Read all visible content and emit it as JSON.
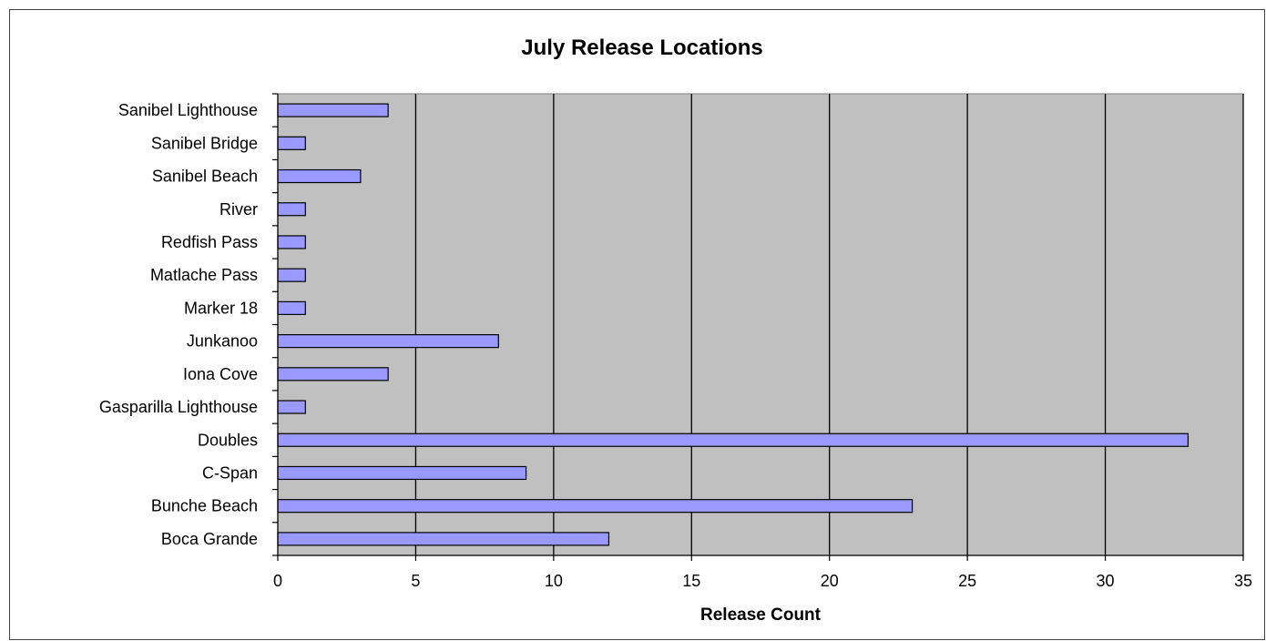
{
  "chart_data": {
    "type": "bar",
    "orientation": "horizontal",
    "title": "July Release Locations",
    "xlabel": "Release Count",
    "ylabel": "",
    "xlim": [
      0,
      35
    ],
    "x_ticks": [
      0,
      5,
      10,
      15,
      20,
      25,
      30,
      35
    ],
    "grid": "vertical major gridlines",
    "legend": "none",
    "categories": [
      "Sanibel Lighthouse",
      "Sanibel Bridge",
      "Sanibel Beach",
      "River",
      "Redfish Pass",
      "Matlache Pass",
      "Marker 18",
      "Junkanoo",
      "Iona Cove",
      "Gasparilla Lighthouse",
      "Doubles",
      "C-Span",
      "Bunche Beach",
      "Boca Grande"
    ],
    "values": [
      4,
      1,
      3,
      1,
      1,
      1,
      1,
      8,
      4,
      1,
      33,
      9,
      23,
      12
    ],
    "colors": {
      "bar_fill": "#9999ff",
      "bar_stroke": "#000000",
      "plot_background": "#c0c0c0",
      "gridline": "#000000"
    }
  }
}
